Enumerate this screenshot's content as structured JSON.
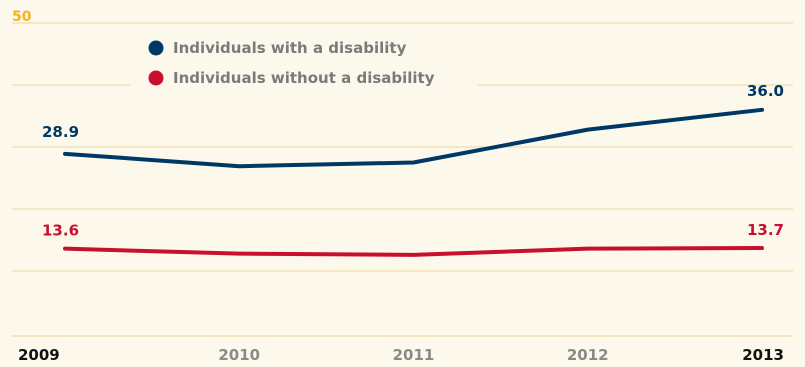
{
  "chart_data": {
    "type": "line",
    "x": [
      "2009",
      "2010",
      "2011",
      "2012",
      "2013"
    ],
    "x_highlight": [
      "2009",
      "2013"
    ],
    "ylim": [
      0,
      50
    ],
    "y_ticks": [
      10,
      20,
      30,
      40,
      50
    ],
    "y_tick_labels_shown": [
      "50"
    ],
    "grid": true,
    "legend_position": "top-center",
    "series": [
      {
        "name": "Individuals with a disability",
        "color": "#003865",
        "values": [
          28.9,
          26.9,
          27.5,
          32.8,
          36.0
        ],
        "labeled_points": [
          {
            "x": "2009",
            "label": "28.9"
          },
          {
            "x": "2013",
            "label": "36.0"
          }
        ]
      },
      {
        "name": "Individuals without a disability",
        "color": "#c8102e",
        "values": [
          13.6,
          12.8,
          12.6,
          13.6,
          13.7
        ],
        "labeled_points": [
          {
            "x": "2009",
            "label": "13.6"
          },
          {
            "x": "2013",
            "label": "13.7"
          }
        ]
      }
    ],
    "colors": {
      "background": "#fcf8ec",
      "grid": "#f2e2b4",
      "tick_label": "#f0b323",
      "axis_label_highlight": "#111111",
      "axis_label_muted": "#8a8a8a"
    }
  }
}
